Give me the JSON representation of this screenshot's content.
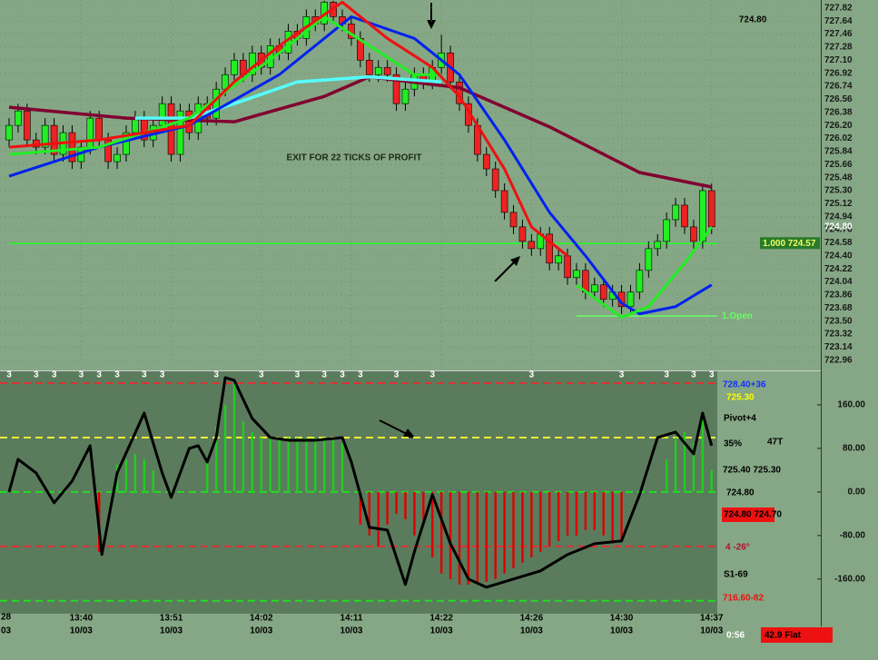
{
  "chart_data": [
    {
      "type": "candlestick",
      "categories": [
        null,
        null,
        null,
        null,
        null,
        null,
        null,
        null,
        "13:40",
        null,
        null,
        null,
        null,
        null,
        null,
        null,
        null,
        null,
        "13:51",
        null,
        null,
        null,
        null,
        null,
        null,
        null,
        null,
        null,
        "14:02",
        null,
        null,
        null,
        null,
        null,
        null,
        null,
        null,
        null,
        "14:11",
        null,
        null,
        null,
        null,
        null,
        null,
        null,
        null,
        null,
        "14:22",
        null,
        null,
        null,
        null,
        null,
        null,
        null,
        null,
        null,
        "14:26",
        null,
        null,
        null,
        null,
        null,
        null,
        null,
        null,
        null,
        "14:30",
        null,
        null,
        null,
        null,
        null,
        null,
        null,
        null,
        null,
        "14:37"
      ],
      "dates": [
        null,
        null,
        null,
        null,
        null,
        null,
        null,
        null,
        "10/03",
        null,
        null,
        null,
        null,
        null,
        null,
        null,
        null,
        null,
        "10/03",
        null,
        null,
        null,
        null,
        null,
        null,
        null,
        null,
        null,
        "10/03",
        null,
        null,
        null,
        null,
        null,
        null,
        null,
        null,
        null,
        "10/03",
        null,
        null,
        null,
        null,
        null,
        null,
        null,
        null,
        null,
        "10/03",
        null,
        null,
        null,
        null,
        null,
        null,
        null,
        null,
        null,
        "10/03",
        null,
        null,
        null,
        null,
        null,
        null,
        null,
        null,
        null,
        "10/03",
        null,
        null,
        null,
        null,
        null,
        null,
        null,
        null,
        null,
        "10/03"
      ],
      "edge_labels": [
        "28",
        "03"
      ],
      "open": [
        726.0,
        726.2,
        726.4,
        726.0,
        725.9,
        726.2,
        725.8,
        726.1,
        725.7,
        725.9,
        726.3,
        726.0,
        725.7,
        725.8,
        726.1,
        726.3,
        726.0,
        726.2,
        726.5,
        725.8,
        726.4,
        726.1,
        726.5,
        726.3,
        726.7,
        726.9,
        727.1,
        726.9,
        727.2,
        727.0,
        727.3,
        727.2,
        727.5,
        727.4,
        727.7,
        727.6,
        727.9,
        727.7,
        727.6,
        727.4,
        727.1,
        726.9,
        727.0,
        726.9,
        726.5,
        726.7,
        726.9,
        726.8,
        727.0,
        727.2,
        726.8,
        726.5,
        726.2,
        725.8,
        725.6,
        725.3,
        725.0,
        724.8,
        724.6,
        724.5,
        724.7,
        724.3,
        724.4,
        724.1,
        724.2,
        723.9,
        724.0,
        723.8,
        723.9,
        723.7,
        723.9,
        724.2,
        724.5,
        724.6,
        724.9,
        725.1,
        724.8,
        724.6,
        725.3
      ],
      "high": [
        726.3,
        726.5,
        726.5,
        726.1,
        726.3,
        726.3,
        726.2,
        726.2,
        726.0,
        726.4,
        726.4,
        726.1,
        725.9,
        726.2,
        726.4,
        726.4,
        726.3,
        726.6,
        726.6,
        726.5,
        726.5,
        726.6,
        726.6,
        726.8,
        727.0,
        727.2,
        727.2,
        727.3,
        727.3,
        727.4,
        727.4,
        727.6,
        727.6,
        727.8,
        727.8,
        727.92,
        727.92,
        727.8,
        727.7,
        727.5,
        727.2,
        727.1,
        727.1,
        727.0,
        726.8,
        727.0,
        727.0,
        727.1,
        727.45,
        727.3,
        726.9,
        726.6,
        726.3,
        725.9,
        725.7,
        725.4,
        725.1,
        724.9,
        724.7,
        724.8,
        724.8,
        724.5,
        724.5,
        724.3,
        724.3,
        724.1,
        724.1,
        724.0,
        724.0,
        724.0,
        724.3,
        724.6,
        724.7,
        725.0,
        725.2,
        725.2,
        724.9,
        725.4,
        725.4
      ],
      "low": [
        725.9,
        726.1,
        725.9,
        725.8,
        725.8,
        725.7,
        725.7,
        725.6,
        725.6,
        725.8,
        725.9,
        725.6,
        725.6,
        725.7,
        726.0,
        725.9,
        725.9,
        726.1,
        725.7,
        725.7,
        726.0,
        726.0,
        726.2,
        726.2,
        726.6,
        726.8,
        726.8,
        726.8,
        726.9,
        726.9,
        727.1,
        727.1,
        727.3,
        727.3,
        727.5,
        727.5,
        727.6,
        727.5,
        727.3,
        727.0,
        726.8,
        726.8,
        726.8,
        726.4,
        726.4,
        726.6,
        726.7,
        726.7,
        726.9,
        726.7,
        726.4,
        726.1,
        725.7,
        725.5,
        725.2,
        724.9,
        724.7,
        724.5,
        724.4,
        724.4,
        724.2,
        724.2,
        724.0,
        724.0,
        723.8,
        723.8,
        723.7,
        723.7,
        723.6,
        723.6,
        723.8,
        724.1,
        724.4,
        724.5,
        724.8,
        724.7,
        724.5,
        724.5,
        724.7
      ],
      "close": [
        726.2,
        726.4,
        726.0,
        725.9,
        726.2,
        725.8,
        726.1,
        725.7,
        725.9,
        726.3,
        726.0,
        725.7,
        725.8,
        726.1,
        726.3,
        726.0,
        726.2,
        726.5,
        725.8,
        726.4,
        726.1,
        726.5,
        726.3,
        726.7,
        726.9,
        727.1,
        726.9,
        727.2,
        727.0,
        727.3,
        727.2,
        727.5,
        727.4,
        727.7,
        727.6,
        727.9,
        727.7,
        727.6,
        727.4,
        727.1,
        726.9,
        727.0,
        726.9,
        726.5,
        726.7,
        726.9,
        726.8,
        727.0,
        727.2,
        726.8,
        726.5,
        726.2,
        725.8,
        725.6,
        725.3,
        725.0,
        724.8,
        724.6,
        724.5,
        724.7,
        724.3,
        724.4,
        724.1,
        724.2,
        723.9,
        724.0,
        723.8,
        723.9,
        723.7,
        723.9,
        724.2,
        724.5,
        724.6,
        724.9,
        725.1,
        724.8,
        724.6,
        725.3,
        724.8
      ],
      "up_color": "#22ee22",
      "down_color": "#ee2222",
      "ylim": [
        722.82,
        727.93
      ],
      "yticks": [
        722.96,
        723.14,
        723.32,
        {
          "value": 723.5,
          "label": "723.50"
        },
        723.68,
        723.86,
        724.04,
        724.22,
        {
          "value": 724.4,
          "label": "724.40"
        },
        724.58,
        724.76,
        724.94,
        725.12,
        {
          "value": 725.3,
          "label": "725.30"
        },
        725.48,
        725.66,
        725.84,
        726.02,
        {
          "value": 726.2,
          "label": "726.20"
        },
        726.38,
        726.56,
        726.74,
        726.92,
        {
          "value": 727.1,
          "label": "727.10"
        },
        727.28,
        727.46,
        727.64,
        727.82
      ],
      "grid": true,
      "series": [
        {
          "color": "#800030",
          "width": 3.5,
          "x": [
            0,
            13,
            25,
            35,
            40,
            50,
            60,
            70,
            78
          ],
          "values": [
            726.45,
            726.3,
            726.25,
            726.6,
            726.87,
            726.72,
            726.18,
            725.55,
            725.35
          ]
        },
        {
          "color": "#55ffff",
          "width": 3.5,
          "x": [
            14,
            20,
            25,
            32,
            40,
            48
          ],
          "values": [
            726.3,
            726.3,
            726.5,
            726.8,
            726.87,
            726.8
          ]
        },
        {
          "color": "#0022ee",
          "width": 3,
          "x": [
            0,
            10,
            20,
            30,
            38,
            45,
            50,
            55,
            60,
            64,
            68,
            70,
            74,
            78
          ],
          "values": [
            725.5,
            725.9,
            726.2,
            726.9,
            727.7,
            727.4,
            726.9,
            726.0,
            725.0,
            724.4,
            723.75,
            723.6,
            723.7,
            724.0
          ]
        },
        {
          "color": "#22ee22",
          "width": 3,
          "x": [
            0,
            10,
            20,
            30,
            35,
            45,
            48
          ],
          "values": [
            725.8,
            725.9,
            726.3,
            727.2,
            727.7,
            726.9,
            726.9
          ]
        },
        {
          "color": "#22ee22",
          "width": 3,
          "x": [
            63,
            68,
            71,
            75,
            78
          ],
          "values": [
            724.0,
            723.55,
            723.7,
            724.3,
            724.8
          ]
        },
        {
          "color": "#ee1111",
          "width": 3,
          "x": [
            0,
            10,
            20,
            25,
            30,
            37,
            42,
            47,
            50,
            55,
            58,
            62
          ],
          "values": [
            725.9,
            726.0,
            726.2,
            726.8,
            727.3,
            727.9,
            727.4,
            727.0,
            726.6,
            725.6,
            724.8,
            724.4
          ]
        }
      ],
      "hlines": [
        {
          "value": 724.57,
          "label": "1.000 724.57",
          "color": "#22ff22",
          "from": 0
        },
        {
          "value": 723.57,
          "label": "1.Open",
          "color": "#66ff66",
          "from": 63
        }
      ],
      "annotation": "EXIT FOR 22 TICKS OF PROFIT",
      "last_price": "724.80"
    },
    {
      "type": "oscillator",
      "values": [
        0,
        0,
        0,
        0,
        0,
        0,
        0,
        0,
        0,
        0,
        -110,
        0,
        50,
        60,
        70,
        60,
        40,
        0,
        0,
        0,
        0,
        0,
        60,
        120,
        160,
        200,
        130,
        110,
        100,
        100,
        100,
        100,
        100,
        100,
        100,
        100,
        95,
        90,
        0,
        -60,
        -80,
        -100,
        -60,
        -40,
        -50,
        -80,
        -50,
        -120,
        -150,
        -160,
        -170,
        -170,
        -170,
        -165,
        -160,
        -150,
        -140,
        -130,
        -120,
        -110,
        -100,
        -90,
        -80,
        -80,
        -70,
        -70,
        -80,
        -90,
        -90,
        0,
        0,
        0,
        0,
        60,
        100,
        110,
        90,
        140,
        40
      ],
      "up_color": "#22cc22",
      "down_color": "#dd0000",
      "line": {
        "color": "#000000",
        "x": [
          0,
          1,
          3,
          5,
          7,
          9,
          10.3,
          12,
          15,
          17,
          18,
          20,
          21,
          22,
          23,
          24,
          25,
          27,
          29,
          31,
          34,
          37,
          38,
          40,
          42,
          44,
          45,
          47,
          49,
          51,
          53,
          56,
          59,
          62,
          65,
          68,
          70,
          72,
          74,
          76,
          77,
          78
        ],
        "values": [
          0,
          60,
          35,
          -20,
          20,
          85,
          -115,
          35,
          145,
          35,
          -10,
          80,
          85,
          55,
          100,
          210,
          205,
          135,
          100,
          95,
          95,
          100,
          55,
          -65,
          -70,
          -170,
          -110,
          -5,
          -95,
          -160,
          -175,
          -160,
          -145,
          -115,
          -95,
          -90,
          -5,
          100,
          110,
          70,
          145,
          85
        ]
      },
      "ylim": [
        -222,
        220
      ],
      "yticks": [
        {
          "value": 160,
          "label": "160.00"
        },
        {
          "value": 80,
          "label": "80.00"
        },
        {
          "value": 0,
          "label": "0.00"
        },
        {
          "value": -80,
          "label": "-80.00"
        },
        {
          "value": -160,
          "label": "-160.00"
        }
      ],
      "levels": [
        {
          "value": 200,
          "color": "#dd3333"
        },
        {
          "value": 100,
          "color": "#eeee33"
        },
        {
          "value": 0,
          "color": "#22dd22"
        },
        {
          "value": -100,
          "color": "#dd3333"
        },
        {
          "value": -200,
          "color": "#22dd22"
        }
      ],
      "markers": {
        "label": "3",
        "x": [
          0,
          3,
          5,
          8,
          10,
          12,
          15,
          17,
          23,
          28,
          32,
          35,
          37,
          39,
          43,
          47,
          58,
          68,
          73,
          76,
          78
        ]
      }
    }
  ],
  "panel": {
    "pivot_high": "728.40+36",
    "pivot_price": "725.30",
    "pivot": "Pivot+4",
    "percent": "35%",
    "ticks": "47T",
    "bid_ask": "725.40 725.30",
    "last": "724.80",
    "range": "724.80 724.70",
    "angle": "4  -26°",
    "support": "S1-69",
    "support_price": "716.60-82"
  },
  "status": {
    "timer": "0:56",
    "state": "42.9 Flat"
  }
}
